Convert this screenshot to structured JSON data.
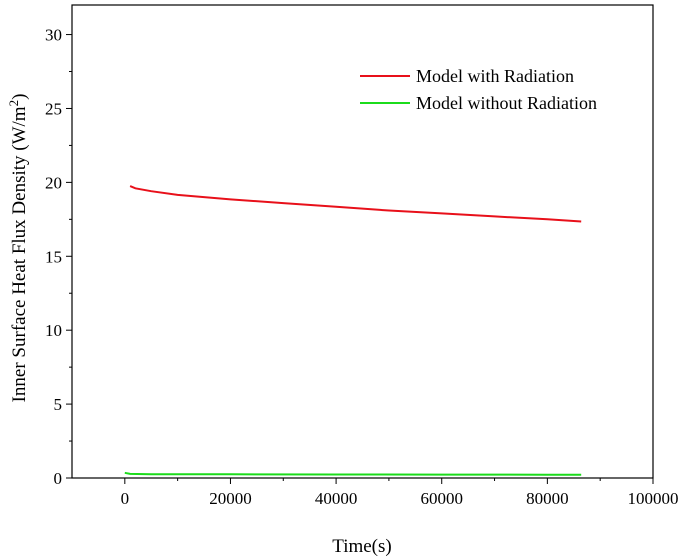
{
  "chart_data": {
    "type": "line",
    "xlabel": "Time(s)",
    "ylabel": "Inner Surface Heat Flux Density (W/m",
    "ylabel_superscript": "2",
    "ylabel_suffix": ")",
    "xlim": [
      -10000,
      100000
    ],
    "ylim": [
      0,
      32
    ],
    "xticks": [
      0,
      20000,
      40000,
      60000,
      80000,
      100000
    ],
    "yticks": [
      0,
      5,
      10,
      15,
      20,
      25,
      30
    ],
    "xtick_labels": [
      "0",
      "20000",
      "40000",
      "60000",
      "80000",
      "100000"
    ],
    "ytick_labels": [
      "0",
      "5",
      "10",
      "15",
      "20",
      "25",
      "30"
    ],
    "legend_position": "top-right",
    "grid": false,
    "series": [
      {
        "name": "Model with Radiation",
        "color": "#e8101a",
        "x": [
          1000,
          2000,
          5000,
          10000,
          20000,
          30000,
          40000,
          50000,
          60000,
          70000,
          80000,
          86400
        ],
        "y": [
          19.75,
          19.6,
          19.4,
          19.15,
          18.85,
          18.6,
          18.35,
          18.1,
          17.9,
          17.7,
          17.5,
          17.35
        ]
      },
      {
        "name": "Model without Radiation",
        "color": "#1bdc1b",
        "x": [
          0,
          1000,
          5000,
          20000,
          40000,
          60000,
          80000,
          86400
        ],
        "y": [
          0.35,
          0.28,
          0.26,
          0.25,
          0.24,
          0.23,
          0.22,
          0.22
        ]
      }
    ]
  }
}
